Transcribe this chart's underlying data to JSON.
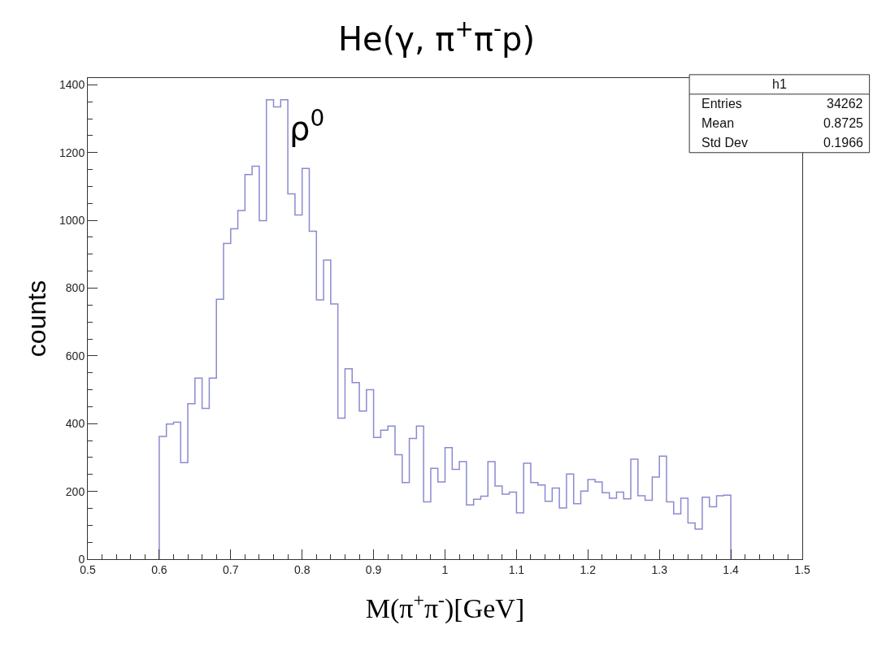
{
  "chart_data": {
    "type": "histogram",
    "title": "He(γ, π$^{+}$π$^{-}$p)",
    "xlabel": "M(π$^{+}$π$^{-}$)[GeV]",
    "ylabel": "counts",
    "bins": [
      0.6,
      0.61,
      0.62,
      0.63,
      0.64,
      0.65,
      0.66,
      0.67,
      0.68,
      0.69,
      0.7,
      0.71,
      0.72,
      0.73,
      0.74,
      0.75,
      0.76,
      0.77,
      0.78,
      0.79,
      0.8,
      0.81,
      0.82,
      0.83,
      0.84,
      0.85,
      0.86,
      0.87,
      0.88,
      0.89,
      0.9,
      0.91,
      0.92,
      0.93,
      0.94,
      0.95,
      0.96,
      0.97,
      0.98,
      0.99,
      1.0,
      1.01,
      1.02,
      1.03,
      1.04,
      1.05,
      1.06,
      1.07,
      1.08,
      1.09,
      1.1,
      1.11,
      1.12,
      1.13,
      1.14,
      1.15,
      1.16,
      1.17,
      1.18,
      1.19,
      1.2,
      1.21,
      1.22,
      1.23,
      1.24,
      1.25,
      1.26,
      1.27,
      1.28,
      1.29,
      1.3,
      1.31,
      1.32,
      1.33,
      1.34,
      1.35,
      1.36,
      1.37,
      1.38,
      1.39,
      1.4
    ],
    "values": [
      362,
      399,
      404,
      285,
      459,
      534,
      445,
      534,
      767,
      932,
      975,
      1029,
      1135,
      1160,
      999,
      1356,
      1335,
      1356,
      1078,
      1016,
      1153,
      968,
      765,
      883,
      753,
      416,
      562,
      521,
      437,
      500,
      359,
      381,
      393,
      308,
      226,
      356,
      393,
      169,
      268,
      228,
      329,
      265,
      288,
      160,
      177,
      186,
      288,
      216,
      192,
      198,
      137,
      283,
      226,
      219,
      171,
      210,
      151,
      251,
      164,
      201,
      235,
      228,
      196,
      180,
      198,
      178,
      295,
      187,
      174,
      242,
      304,
      169,
      134,
      180,
      107,
      89,
      183,
      155,
      187,
      189
    ],
    "color": "#8a8ad0",
    "xlim": [
      0.5,
      1.5
    ],
    "xticks": [
      0.5,
      0.6,
      0.7,
      0.8,
      0.9,
      1,
      1.1,
      1.2,
      1.3,
      1.4,
      1.5
    ],
    "ylim": [
      0,
      1420
    ],
    "yticks": [
      0,
      200,
      400,
      600,
      800,
      1000,
      1200,
      1400
    ],
    "annotations": [
      "ρ$^{0}$",
      "h1",
      "Entries",
      "34262",
      "Mean",
      "0.8725",
      "Std Dev",
      "0.1966"
    ]
  }
}
